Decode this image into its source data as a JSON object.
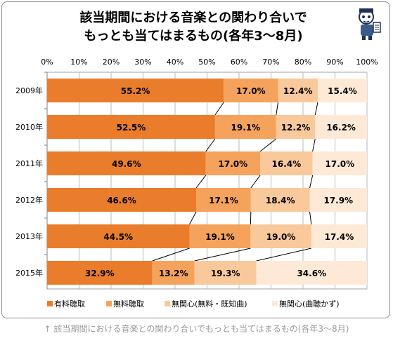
{
  "title_line1": "該当期間における音楽との関わり合いで",
  "title_line2": "もっとも当てはまるもの(各年3〜8月)",
  "caption": "↑ 該当期間における音楽との関わり合いでもっとも当てはまるもの(各年3〜8月)",
  "chart_data": {
    "type": "bar",
    "orientation": "horizontal-stacked-100",
    "categories": [
      "2009年",
      "2010年",
      "2011年",
      "2012年",
      "2013年",
      "2015年"
    ],
    "series": [
      {
        "name": "有料聴取",
        "color": "#e97d2b",
        "values": [
          55.2,
          52.5,
          49.6,
          46.6,
          44.5,
          32.9
        ],
        "labels": [
          "55.2%",
          "52.5%",
          "49.6%",
          "46.6%",
          "44.5%",
          "32.9%"
        ]
      },
      {
        "name": "無料聴取",
        "color": "#f5a25c",
        "values": [
          17.0,
          19.1,
          17.0,
          17.1,
          19.1,
          13.2
        ],
        "labels": [
          "17.0%",
          "19.1%",
          "17.0%",
          "17.1%",
          "19.1%",
          "13.2%"
        ]
      },
      {
        "name": "無関心(無料・既知曲)",
        "color": "#f9c89b",
        "values": [
          12.4,
          12.2,
          16.4,
          18.4,
          19.0,
          19.3
        ],
        "labels": [
          "12.4%",
          "12.2%",
          "16.4%",
          "18.4%",
          "19.0%",
          "19.3%"
        ]
      },
      {
        "name": "無関心(曲聴かず)",
        "color": "#fde9d6",
        "values": [
          15.4,
          16.2,
          17.0,
          17.9,
          17.4,
          34.6
        ],
        "labels": [
          "15.4%",
          "16.2%",
          "17.0%",
          "17.9%",
          "17.4%",
          "34.6%"
        ]
      }
    ],
    "xlim": [
      0,
      100
    ],
    "xticks": [
      "0%",
      "10%",
      "20%",
      "30%",
      "40%",
      "50%",
      "60%",
      "70%",
      "80%",
      "90%",
      "100%"
    ],
    "xaxis_position": "top",
    "grid": true,
    "legend_position": "bottom",
    "series_connector_lines": true
  }
}
